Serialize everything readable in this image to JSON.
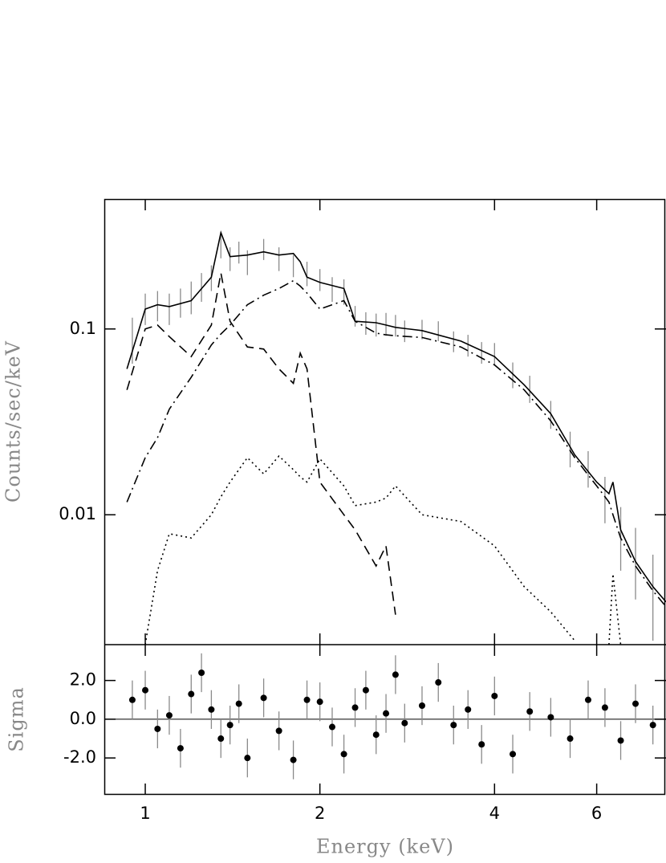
{
  "chart_data": [
    {
      "type": "line",
      "ylabel": "Counts/sec/keV",
      "log_x": true,
      "log_y": true,
      "xlim": [
        0.85,
        7.9
      ],
      "ylim": [
        0.002,
        0.5
      ],
      "xticks": [
        1,
        2,
        4,
        6
      ],
      "yticks": [
        0.01,
        0.1
      ],
      "x": [
        0.93,
        1.0,
        1.05,
        1.1,
        1.2,
        1.3,
        1.35,
        1.4,
        1.5,
        1.6,
        1.7,
        1.8,
        1.85,
        1.9,
        2.0,
        2.2,
        2.3,
        2.5,
        2.6,
        2.7,
        3.0,
        3.5,
        4.0,
        4.5,
        5.0,
        5.5,
        6.0,
        6.3,
        6.4,
        6.6,
        7.0,
        7.5,
        7.9
      ],
      "series": [
        {
          "color": "#000000",
          "dash": "solid",
          "values": [
            0.061,
            0.128,
            0.135,
            0.132,
            0.142,
            0.19,
            0.33,
            0.245,
            0.25,
            0.26,
            0.25,
            0.255,
            0.23,
            0.19,
            0.178,
            0.165,
            0.11,
            0.108,
            0.105,
            0.102,
            0.098,
            0.086,
            0.071,
            0.05,
            0.035,
            0.021,
            0.015,
            0.013,
            0.015,
            0.0083,
            0.0056,
            0.0041,
            0.0034
          ]
        },
        {
          "color": "#000000",
          "dash": "dashed",
          "values": [
            0.047,
            0.1,
            0.105,
            0.091,
            0.071,
            0.105,
            0.2,
            0.11,
            0.08,
            0.078,
            0.061,
            0.051,
            0.074,
            0.061,
            0.015,
            0.01,
            0.0083,
            0.0053,
            0.0068,
            0.0029,
            null,
            null,
            null,
            null,
            null,
            null,
            null,
            null,
            null,
            null,
            null,
            null,
            null
          ]
        },
        {
          "color": "#000000",
          "dash": "dashdot",
          "values": [
            0.0117,
            0.0203,
            0.026,
            0.037,
            0.055,
            0.082,
            0.094,
            0.105,
            0.135,
            0.152,
            0.165,
            0.182,
            0.17,
            0.156,
            0.128,
            0.142,
            0.11,
            0.095,
            0.093,
            0.092,
            0.09,
            0.08,
            0.064,
            0.047,
            0.032,
            0.0203,
            0.0143,
            0.0117,
            0.01,
            0.0075,
            0.0053,
            0.0039,
            0.0032
          ]
        },
        {
          "color": "#000000",
          "dash": "dotted",
          "values": [
            null,
            0.002,
            0.005,
            0.0079,
            0.0075,
            0.01,
            0.0125,
            0.015,
            0.0203,
            0.0166,
            0.0207,
            0.0175,
            0.016,
            0.015,
            0.02,
            0.0143,
            0.0112,
            0.0117,
            0.0123,
            0.0143,
            0.01,
            0.0092,
            0.0068,
            0.0041,
            0.003,
            0.0021,
            null,
            0.002,
            0.0048,
            0.002,
            null,
            null,
            null
          ]
        }
      ],
      "data": {
        "color": "#8a8a8a",
        "x": [
          0.95,
          1.0,
          1.05,
          1.1,
          1.15,
          1.2,
          1.25,
          1.3,
          1.35,
          1.4,
          1.45,
          1.5,
          1.6,
          1.7,
          1.8,
          1.9,
          2.0,
          2.1,
          2.2,
          2.3,
          2.4,
          2.5,
          2.6,
          2.7,
          2.8,
          3.0,
          3.2,
          3.4,
          3.6,
          3.8,
          4.0,
          4.3,
          4.6,
          5.0,
          5.4,
          5.8,
          6.2,
          6.6,
          7.0,
          7.5
        ],
        "values": [
          0.09,
          0.13,
          0.135,
          0.13,
          0.14,
          0.15,
          0.17,
          0.19,
          0.28,
          0.24,
          0.26,
          0.23,
          0.27,
          0.24,
          0.22,
          0.2,
          0.185,
          0.165,
          0.16,
          0.118,
          0.108,
          0.106,
          0.107,
          0.105,
          0.098,
          0.1,
          0.098,
          0.086,
          0.082,
          0.075,
          0.074,
          0.057,
          0.048,
          0.035,
          0.023,
          0.018,
          0.0125,
          0.008,
          0.006,
          0.0041
        ],
        "errors": [
          0.025,
          0.025,
          0.025,
          0.025,
          0.025,
          0.03,
          0.03,
          0.03,
          0.04,
          0.035,
          0.035,
          0.035,
          0.035,
          0.035,
          0.03,
          0.03,
          0.025,
          0.025,
          0.025,
          0.015,
          0.015,
          0.015,
          0.015,
          0.014,
          0.013,
          0.012,
          0.012,
          0.011,
          0.011,
          0.01,
          0.01,
          0.009,
          0.008,
          0.006,
          0.005,
          0.004,
          0.0035,
          0.003,
          0.0025,
          0.002
        ]
      }
    },
    {
      "type": "scatter",
      "xlabel": "Energy (keV)",
      "ylabel": "Sigma",
      "log_x": true,
      "xlim": [
        0.85,
        7.9
      ],
      "ylim": [
        -3.9,
        3.85
      ],
      "xticks": [
        1,
        2,
        4,
        6
      ],
      "yticks": [
        {
          "value": 2,
          "label": "2.0"
        },
        {
          "value": 0,
          "label": "0.0"
        },
        {
          "value": -2,
          "label": "-2.0"
        }
      ],
      "color": "#000000",
      "error_color": "#8a8a8a",
      "x": [
        0.95,
        1.0,
        1.05,
        1.1,
        1.15,
        1.2,
        1.25,
        1.3,
        1.35,
        1.4,
        1.45,
        1.5,
        1.6,
        1.7,
        1.8,
        1.9,
        2.0,
        2.1,
        2.2,
        2.3,
        2.4,
        2.5,
        2.6,
        2.7,
        2.8,
        3.0,
        3.2,
        3.4,
        3.6,
        3.8,
        4.0,
        4.3,
        4.6,
        5.0,
        5.4,
        5.8,
        6.2,
        6.6,
        7.0,
        7.5
      ],
      "values": [
        1.0,
        1.5,
        -0.5,
        0.2,
        -1.5,
        1.3,
        2.4,
        0.5,
        -1.0,
        -0.3,
        0.8,
        -2.0,
        1.1,
        -0.6,
        -2.1,
        1.0,
        0.9,
        -0.4,
        -1.8,
        0.6,
        1.5,
        -0.8,
        0.3,
        2.3,
        -0.2,
        0.7,
        1.9,
        -0.3,
        0.5,
        -1.3,
        1.2,
        -1.8,
        0.4,
        0.1,
        -1.0,
        1.0,
        0.6,
        -1.1,
        0.8,
        -0.3
      ],
      "errors": [
        1.0,
        1.0,
        1.0,
        1.0,
        1.0,
        1.0,
        1.0,
        1.0,
        1.0,
        1.0,
        1.0,
        1.0,
        1.0,
        1.0,
        1.0,
        1.0,
        1.0,
        1.0,
        1.0,
        1.0,
        1.0,
        1.0,
        1.0,
        1.0,
        1.0,
        1.0,
        1.0,
        1.0,
        1.0,
        1.0,
        1.0,
        1.0,
        1.0,
        1.0,
        1.0,
        1.0,
        1.0,
        1.0,
        1.0,
        1.0
      ]
    }
  ]
}
